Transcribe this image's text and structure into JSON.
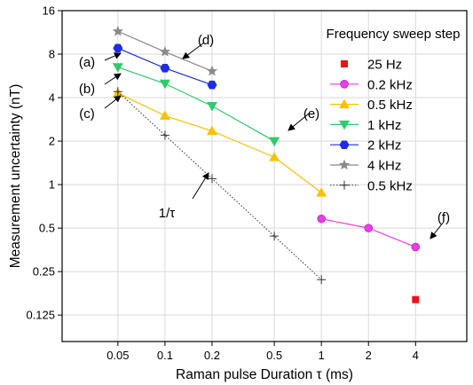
{
  "chart_data": {
    "type": "line",
    "xlabel": "Raman pulse Duration τ (ms)",
    "ylabel": "Measurement uncertainty (nT)",
    "xscale": "log",
    "yscale": "log",
    "xlim": [
      0.022,
      8.5
    ],
    "ylim": [
      0.082,
      16
    ],
    "xticks": [
      0.05,
      0.1,
      0.2,
      0.5,
      1,
      2,
      4
    ],
    "xtick_labels": [
      "0.05",
      "0.1",
      "0.2",
      "0.5",
      "1",
      "2",
      "4"
    ],
    "yticks": [
      0.125,
      0.25,
      0.5,
      1,
      2,
      4,
      8,
      16
    ],
    "ytick_labels": [
      "0.125",
      "0.25",
      "0.5",
      "1",
      "2",
      "4",
      "8",
      "16"
    ],
    "grid": true,
    "legend": {
      "title": "Frequency sweep step",
      "placement": "right"
    },
    "series": [
      {
        "name": "25 Hz",
        "color": "#e8141a",
        "marker": "square",
        "line": "none",
        "x": [
          4
        ],
        "y": [
          0.16
        ]
      },
      {
        "name": "0.2 kHz",
        "color": "#e83de8",
        "marker": "circle",
        "line": "solid",
        "x": [
          1,
          2,
          4
        ],
        "y": [
          0.58,
          0.5,
          0.37
        ]
      },
      {
        "name": "0.5 kHz",
        "color": "#f7c200",
        "marker": "triangle-up",
        "line": "solid",
        "x": [
          0.05,
          0.1,
          0.2,
          0.5,
          1
        ],
        "y": [
          4.3,
          3.0,
          2.35,
          1.55,
          0.88
        ]
      },
      {
        "name": "1 kHz",
        "color": "#2dcc6b",
        "marker": "triangle-down",
        "line": "solid",
        "x": [
          0.05,
          0.1,
          0.2,
          0.5
        ],
        "y": [
          6.5,
          5.0,
          3.5,
          2.0
        ]
      },
      {
        "name": "2 kHz",
        "color": "#1f2ee0",
        "marker": "hexagon",
        "line": "solid",
        "x": [
          0.05,
          0.1,
          0.2
        ],
        "y": [
          8.8,
          6.4,
          4.9
        ]
      },
      {
        "name": "4 kHz",
        "color": "#8a8a8a",
        "marker": "star",
        "line": "solid",
        "x": [
          0.05,
          0.1,
          0.2
        ],
        "y": [
          11.5,
          8.3,
          6.1
        ]
      },
      {
        "name": "0.5 kHz",
        "color": "#333333",
        "marker": "plus",
        "line": "dotted",
        "x": [
          0.05,
          0.1,
          0.2,
          0.5,
          1
        ],
        "y": [
          4.4,
          2.2,
          1.1,
          0.44,
          0.22
        ]
      }
    ],
    "annotations": [
      {
        "label": "(a)",
        "target_series": "2 kHz",
        "target_x": 0.05
      },
      {
        "label": "(b)",
        "target_series": "1 kHz",
        "target_x": 0.05
      },
      {
        "label": "(c)",
        "target_series": "0.5 kHz",
        "target_x": 0.05
      },
      {
        "label": "(d)",
        "target_series": "4 kHz",
        "target_x": 0.1
      },
      {
        "label": "(e)",
        "target_series": "1 kHz",
        "target_x": 0.5
      },
      {
        "label": "(f)",
        "target_series": "0.2 kHz",
        "target_x": 4
      },
      {
        "label": "1/τ",
        "target_series": "0.5 kHz (dotted)",
        "target_x": 0.2
      }
    ]
  }
}
